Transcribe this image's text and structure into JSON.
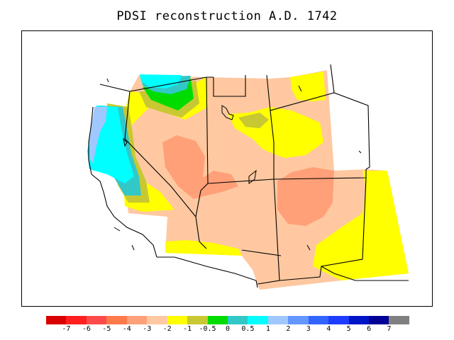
{
  "title": "PDSI reconstruction A.D. 1742",
  "legend": {
    "colors": [
      "#d90000",
      "#ff1f1f",
      "#ff4a4a",
      "#ff7a4a",
      "#ffa078",
      "#ffc8a0",
      "#ffff00",
      "#c8c832",
      "#00dc00",
      "#32c8c8",
      "#00ffff",
      "#a0c8ff",
      "#6496ff",
      "#3264ff",
      "#1e3cff",
      "#0014c8",
      "#000096",
      "#808080"
    ],
    "labels": [
      "-7",
      "-6",
      "-5",
      "-4",
      "-3",
      "-2",
      "-1",
      "-0.5",
      "0",
      "0.5",
      "1",
      "2",
      "3",
      "4",
      "5",
      "6",
      "7"
    ]
  },
  "colors": {
    "frame": "#000000",
    "background": "#ffffff"
  }
}
